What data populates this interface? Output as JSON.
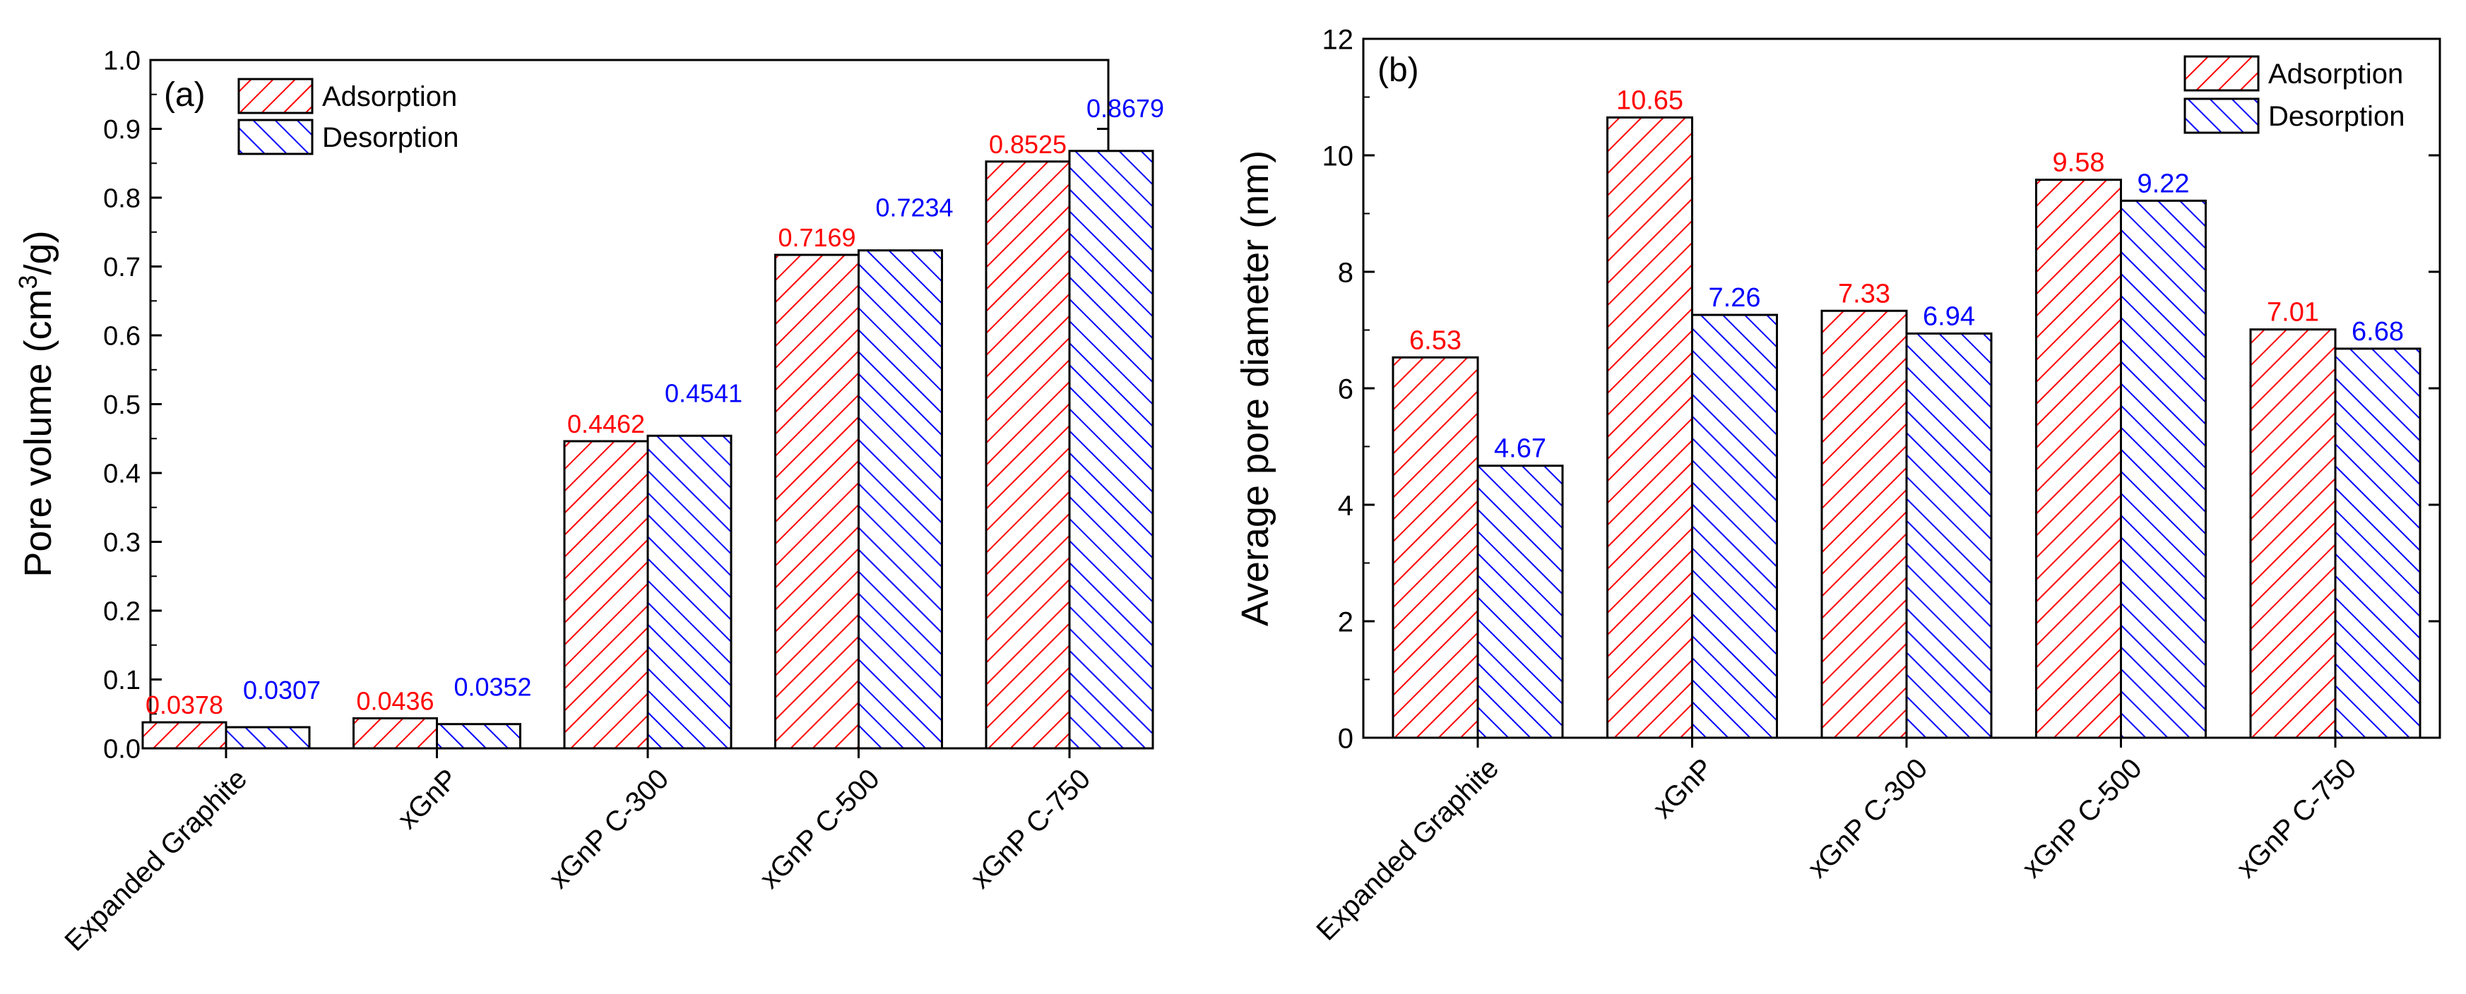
{
  "chart_data": [
    {
      "type": "bar",
      "panel_label": "(a)",
      "categories": [
        "Expanded Graphite",
        "xGnP",
        "xGnP C-300",
        "xGnP C-500",
        "xGnP C-750"
      ],
      "series": [
        {
          "name": "Adsorption",
          "values": [
            0.0378,
            0.0436,
            0.4462,
            0.7169,
            0.8525
          ],
          "labels": [
            "0.0378",
            "0.0436",
            "0.4462",
            "0.7169",
            "0.8525"
          ],
          "color": "#ff0000"
        },
        {
          "name": "Desorption",
          "values": [
            0.0307,
            0.0352,
            0.4541,
            0.7234,
            0.8679
          ],
          "labels": [
            "0.0307",
            "0.0352",
            "0.4541",
            "0.7234",
            "0.8679"
          ],
          "color": "#0000ff"
        }
      ],
      "ylabel_main": "Pore volume (cm",
      "ylabel_sup": "3",
      "ylabel_tail": "/g)",
      "xlabel": "",
      "ylim": [
        0,
        1.0
      ],
      "yticks": [
        0.0,
        0.1,
        0.2,
        0.3,
        0.4,
        0.5,
        0.6,
        0.7,
        0.8,
        0.9,
        1.0
      ],
      "ytick_labels": [
        "0.0",
        "0.1",
        "0.2",
        "0.3",
        "0.4",
        "0.5",
        "0.6",
        "0.7",
        "0.8",
        "0.9",
        "1.0"
      ],
      "legend_position": "top-left"
    },
    {
      "type": "bar",
      "panel_label": "(b)",
      "categories": [
        "Expanded Graphite",
        "xGnP",
        "xGnP C-300",
        "xGnP C-500",
        "xGnP C-750"
      ],
      "series": [
        {
          "name": "Adsorption",
          "values": [
            6.53,
            10.65,
            7.33,
            9.58,
            7.01
          ],
          "labels": [
            "6.53",
            "10.65",
            "7.33",
            "9.58",
            "7.01"
          ],
          "color": "#ff0000"
        },
        {
          "name": "Desorption",
          "values": [
            4.67,
            7.26,
            6.94,
            9.22,
            6.68
          ],
          "labels": [
            "4.67",
            "7.26",
            "6.94",
            "9.22",
            "6.68"
          ],
          "color": "#0000ff"
        }
      ],
      "ylabel_main": "Average pore diameter (nm)",
      "ylabel_sup": "",
      "ylabel_tail": "",
      "xlabel": "",
      "ylim": [
        0,
        12
      ],
      "yticks": [
        0,
        2,
        4,
        6,
        8,
        10,
        12
      ],
      "ytick_labels": [
        "0",
        "2",
        "4",
        "6",
        "8",
        "10",
        "12"
      ],
      "legend_position": "top-right"
    }
  ]
}
